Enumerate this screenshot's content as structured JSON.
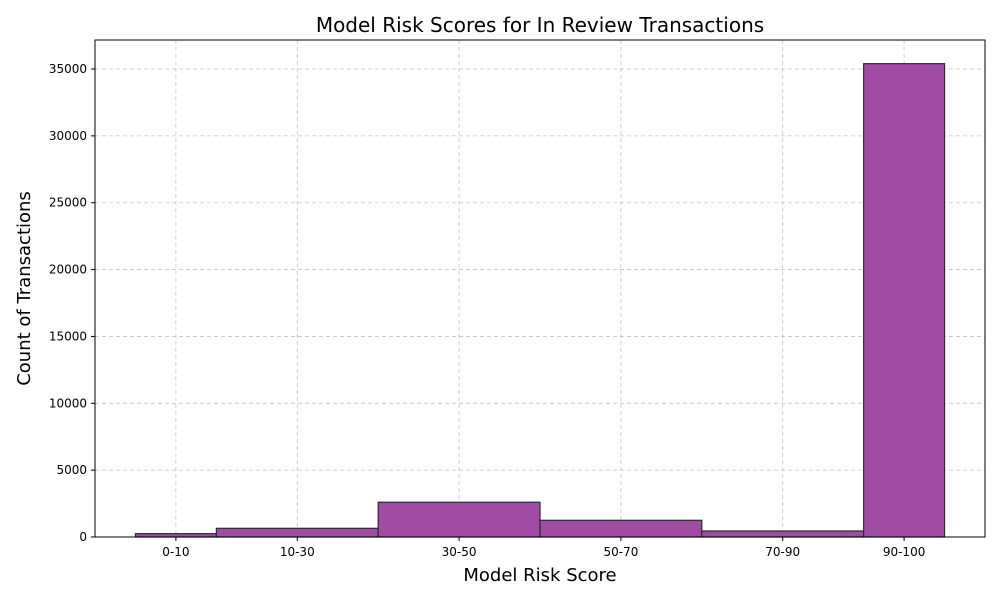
{
  "chart_data": {
    "type": "bar",
    "title": "Model Risk Scores for In Review Transactions",
    "xlabel": "Model Risk Score",
    "ylabel": "Count of Transactions",
    "bins": [
      {
        "label": "0-10",
        "start": 0,
        "end": 10,
        "value": 250
      },
      {
        "label": "10-30",
        "start": 10,
        "end": 30,
        "value": 650
      },
      {
        "label": "30-50",
        "start": 30,
        "end": 50,
        "value": 2600
      },
      {
        "label": "50-70",
        "start": 50,
        "end": 70,
        "value": 1250
      },
      {
        "label": "70-90",
        "start": 70,
        "end": 90,
        "value": 450
      },
      {
        "label": "90-100",
        "start": 90,
        "end": 100,
        "value": 35400
      }
    ],
    "xtick_positions": [
      5,
      20,
      40,
      60,
      80,
      95
    ],
    "xlim": [
      -5,
      105
    ],
    "yticks": [
      0,
      5000,
      10000,
      15000,
      20000,
      25000,
      30000,
      35000
    ],
    "ylim": [
      0,
      37170
    ],
    "grid": true,
    "bar_color": "#a24ba5",
    "edge_color": "#2b2b2b"
  }
}
